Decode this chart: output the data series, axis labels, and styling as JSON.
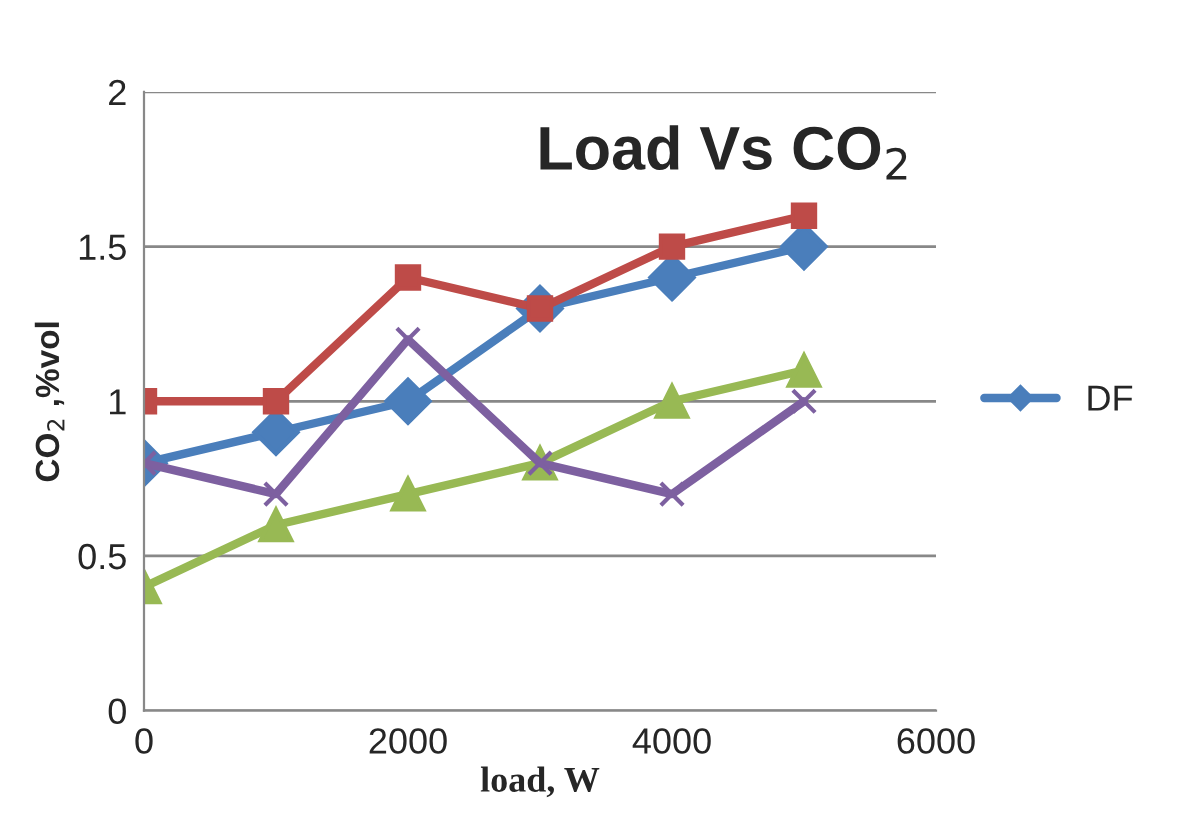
{
  "chart_data": {
    "type": "line",
    "title": "Load Vs CO$_{2}$",
    "xlabel": "load, W",
    "ylabel": "CO$_{2}$ ,%vol",
    "x": [
      0,
      1000,
      2000,
      3000,
      4000,
      5000
    ],
    "series": [
      {
        "name": "DF",
        "color": "#4a7ebb",
        "marker": "diamond",
        "values": [
          0.8,
          0.9,
          1.0,
          1.3,
          1.4,
          1.5
        ]
      },
      {
        "color": "#be4b48",
        "marker": "square",
        "values": [
          1.0,
          1.0,
          1.4,
          1.3,
          1.5,
          1.6
        ]
      },
      {
        "color": "#98b954",
        "marker": "triangle",
        "values": [
          0.4,
          0.6,
          0.7,
          0.8,
          1.0,
          1.1
        ]
      },
      {
        "color": "#7d60a0",
        "marker": "cross",
        "values": [
          0.8,
          0.7,
          1.2,
          0.8,
          0.7,
          1.0
        ]
      }
    ],
    "xlim": [
      0,
      6000
    ],
    "xticks": [
      0,
      2000,
      4000,
      6000
    ],
    "ylim": [
      0,
      2
    ],
    "yticks": [
      0,
      0.5,
      1,
      1.5,
      2
    ],
    "grid": "y",
    "legend": "right"
  }
}
